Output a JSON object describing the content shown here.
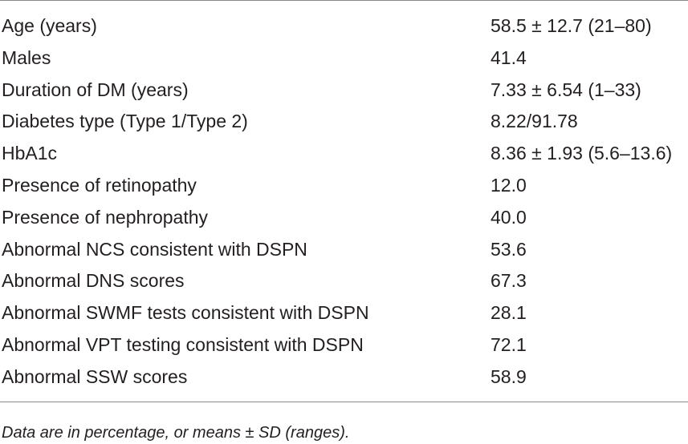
{
  "table": {
    "rows": [
      {
        "label": "Age (years)",
        "value": "58.5 ± 12.7 (21–80)"
      },
      {
        "label": "Males",
        "value": "41.4"
      },
      {
        "label": "Duration of DM (years)",
        "value": "7.33 ± 6.54 (1–33)"
      },
      {
        "label": "Diabetes type (Type 1/Type 2)",
        "value": "8.22/91.78"
      },
      {
        "label": "HbA1c",
        "value": "8.36 ± 1.93 (5.6–13.6)"
      },
      {
        "label": "Presence of retinopathy",
        "value": "12.0"
      },
      {
        "label": "Presence of nephropathy",
        "value": "40.0"
      },
      {
        "label": "Abnormal NCS consistent with DSPN",
        "value": "53.6"
      },
      {
        "label": "Abnormal DNS scores",
        "value": "67.3"
      },
      {
        "label": "Abnormal SWMF tests consistent with DSPN",
        "value": "28.1"
      },
      {
        "label": "Abnormal VPT testing consistent with DSPN",
        "value": "72.1"
      },
      {
        "label": "Abnormal SSW scores",
        "value": "58.9"
      }
    ]
  },
  "footnote": "Data are in percentage, or means ± SD (ranges)."
}
